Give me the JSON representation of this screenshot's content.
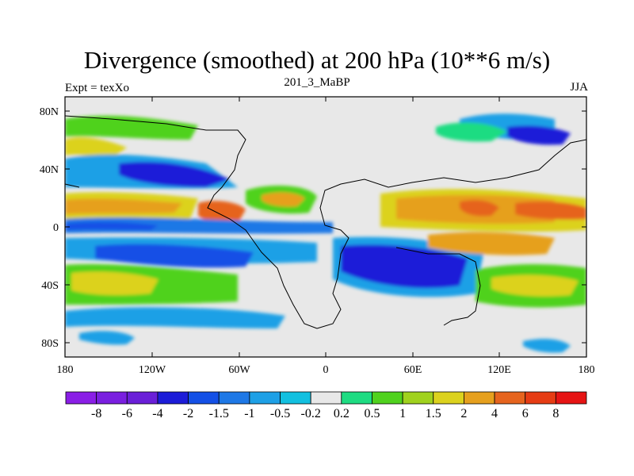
{
  "title": "Divergence (smoothed) at 200 hPa (10**6 m/s)",
  "subtitle_left": "Expt = texXo",
  "subtitle_center": "201_3_MaBP",
  "subtitle_right": "JJA",
  "lat_labels": [
    "80N",
    "40N",
    "0",
    "40S",
    "80S"
  ],
  "lon_labels": [
    "180",
    "120W",
    "60W",
    "0",
    "60E",
    "120E",
    "180"
  ],
  "colorbar": {
    "labels": [
      "-8",
      "-6",
      "-4",
      "-2",
      "-1.5",
      "-1",
      "-0.5",
      "-0.2",
      "0.2",
      "0.5",
      "1",
      "1.5",
      "2",
      "4",
      "6",
      "8"
    ],
    "colors": [
      "#8a1ee6",
      "#7a1fe0",
      "#6a1fd8",
      "#1c1cd8",
      "#1450e6",
      "#1e78e6",
      "#1ea0e6",
      "#12c0e0",
      "#e8e8e8",
      "#1edc82",
      "#50d21e",
      "#a0d21e",
      "#dcd21e",
      "#e6a01e",
      "#e6641e",
      "#e63c14",
      "#e61414"
    ]
  },
  "chart_data": {
    "type": "heatmap",
    "variable": "Divergence (smoothed) at 200 hPa",
    "units": "10**6 m/s",
    "season": "JJA",
    "experiment": "texXo",
    "case": "201_3_MaBP",
    "lon_range": [
      -180,
      180
    ],
    "lat_range": [
      -90,
      90
    ],
    "contour_levels": [
      -8,
      -6,
      -4,
      -2,
      -1.5,
      -1,
      -0.5,
      -0.2,
      0.2,
      0.5,
      1,
      1.5,
      2,
      4,
      6,
      8
    ]
  }
}
